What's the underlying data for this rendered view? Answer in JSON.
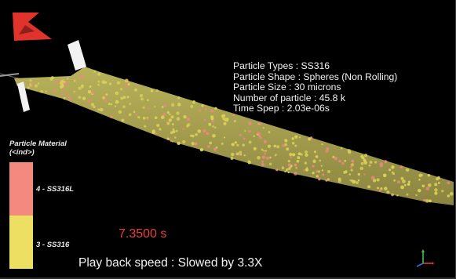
{
  "logo": {
    "icon": "red-triangle-logo-icon",
    "color": "#e0332b"
  },
  "info": {
    "particle_types": "Particle Types : SS316",
    "particle_shape": "Particle Shape : Spheres (Non Rolling)",
    "particle_size": "Particle Size : 30 microns",
    "number_of_particle": "Number of particle : 45.8 k",
    "time_step": "Time Spep : 2.03e-06s"
  },
  "legend": {
    "title_line1": "Particle Material",
    "title_line2": "(<ind>)",
    "entries": [
      {
        "label": "4 - SS316L",
        "color": "#f4897f"
      },
      {
        "label": "3 - SS316",
        "color": "#ecdf62"
      }
    ]
  },
  "time_readout": "7.3500 s",
  "playback": "Play back speed : Slowed by 3.3X",
  "colors": {
    "background": "#000000",
    "particle_yellow": "#d9d05a",
    "particle_pink": "#e98a80",
    "time_text": "#e8403a"
  },
  "axes_icon": "xyz-axes-triad-icon"
}
